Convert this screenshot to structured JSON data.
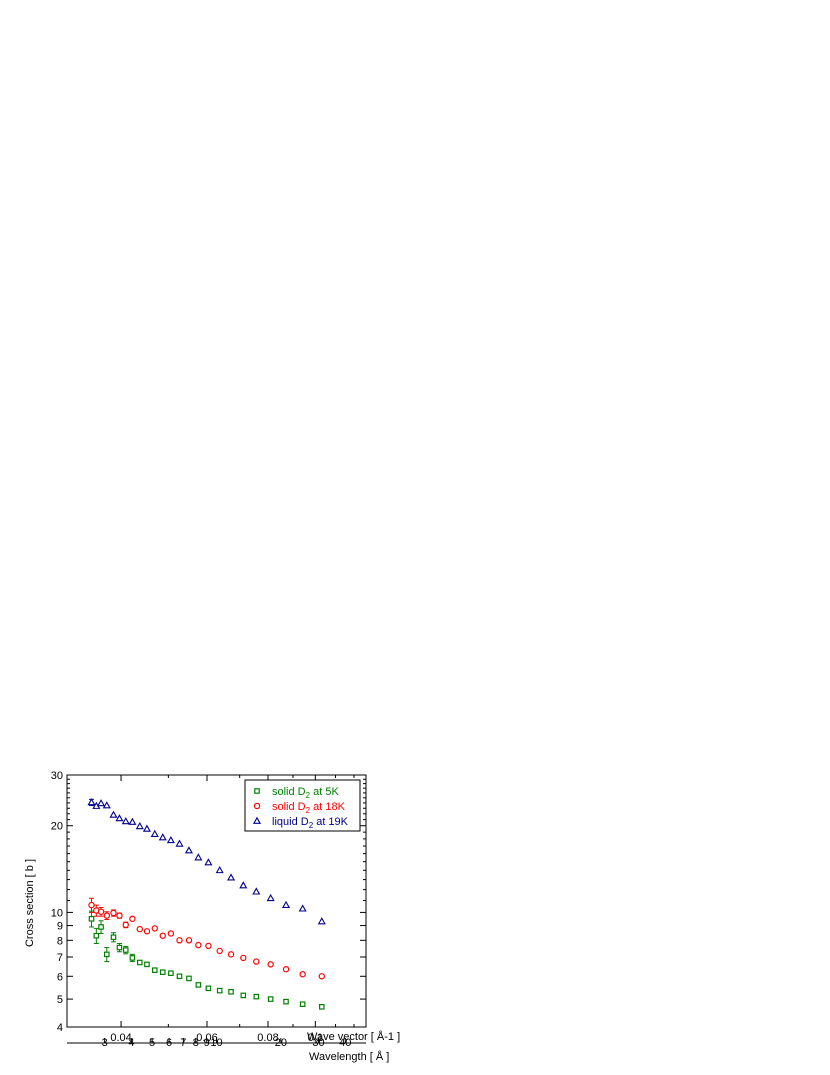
{
  "chart_data": {
    "type": "scatter",
    "xscale": "log",
    "yscale": "log",
    "xlabel": "Wave vector [ Å-1 ]",
    "x2label": "Wavelength [ Å ]",
    "ylabel": "Cross section [ b ]",
    "xlim": [
      0.031,
      0.127
    ],
    "ylim": [
      4,
      30
    ],
    "x_ticks": [
      0.04,
      0.06,
      0.08,
      0.1
    ],
    "x_tick_labels": [
      "0.04",
      "0.06",
      "0.08",
      "0.1"
    ],
    "x2_ticks": [
      3,
      4,
      5,
      6,
      7,
      8,
      9,
      10,
      20,
      30,
      40
    ],
    "x2_tick_labels": [
      "3",
      "4",
      "5",
      "6",
      "7",
      "8",
      "9",
      "10",
      "20",
      "30",
      "40"
    ],
    "y_ticks": [
      4,
      5,
      6,
      7,
      8,
      9,
      10,
      20,
      30
    ],
    "y_tick_labels": [
      "4",
      "5",
      "6",
      "7",
      "8",
      "9",
      "10",
      "20",
      "30"
    ],
    "legend_position": "top-right",
    "grid": false,
    "series": [
      {
        "label_main": "solid D",
        "label_sub": "2",
        "label_rest": " at 5K",
        "marker": "square",
        "color": "#008000",
        "points": [
          {
            "x": 0.0348,
            "y": 9.5,
            "err": 0.6
          },
          {
            "x": 0.0356,
            "y": 8.3,
            "err": 0.5
          },
          {
            "x": 0.0364,
            "y": 8.9,
            "err": 0.45
          },
          {
            "x": 0.0374,
            "y": 7.15,
            "err": 0.4
          },
          {
            "x": 0.0386,
            "y": 8.2,
            "err": 0.3
          },
          {
            "x": 0.0397,
            "y": 7.55,
            "err": 0.25
          },
          {
            "x": 0.0409,
            "y": 7.4,
            "err": 0.22
          },
          {
            "x": 0.0422,
            "y": 6.95,
            "err": 0.2
          },
          {
            "x": 0.0437,
            "y": 6.7,
            "err": 0.12
          },
          {
            "x": 0.0452,
            "y": 6.6,
            "err": 0.1
          },
          {
            "x": 0.0469,
            "y": 6.3,
            "err": 0.08
          },
          {
            "x": 0.0487,
            "y": 6.2,
            "err": 0.07
          },
          {
            "x": 0.0506,
            "y": 6.15,
            "err": 0.06
          },
          {
            "x": 0.0527,
            "y": 6.0,
            "err": 0.06
          },
          {
            "x": 0.0551,
            "y": 5.9,
            "err": 0.05
          },
          {
            "x": 0.0576,
            "y": 5.6,
            "err": 0.05
          },
          {
            "x": 0.0604,
            "y": 5.45,
            "err": 0.05
          },
          {
            "x": 0.0637,
            "y": 5.35,
            "err": 0.05
          },
          {
            "x": 0.0672,
            "y": 5.3,
            "err": 0.04
          },
          {
            "x": 0.0712,
            "y": 5.15,
            "err": 0.04
          },
          {
            "x": 0.0757,
            "y": 5.1,
            "err": 0.04
          },
          {
            "x": 0.081,
            "y": 5.0,
            "err": 0.04
          },
          {
            "x": 0.0871,
            "y": 4.9,
            "err": 0.04
          },
          {
            "x": 0.0942,
            "y": 4.8,
            "err": 0.04
          },
          {
            "x": 0.1031,
            "y": 4.7,
            "err": 0.04
          }
        ]
      },
      {
        "label_main": "solid D",
        "label_sub": "2",
        "label_rest": " at 18K",
        "marker": "circle",
        "color": "#ff0000",
        "points": [
          {
            "x": 0.0348,
            "y": 10.6,
            "err": 0.6
          },
          {
            "x": 0.0356,
            "y": 10.15,
            "err": 0.45
          },
          {
            "x": 0.0364,
            "y": 10.05,
            "err": 0.35
          },
          {
            "x": 0.0374,
            "y": 9.75,
            "err": 0.3
          },
          {
            "x": 0.0386,
            "y": 9.95,
            "err": 0.25
          },
          {
            "x": 0.0397,
            "y": 9.75,
            "err": 0.2
          },
          {
            "x": 0.0409,
            "y": 9.05,
            "err": 0.2
          },
          {
            "x": 0.0422,
            "y": 9.5,
            "err": 0.18
          },
          {
            "x": 0.0437,
            "y": 8.75,
            "err": 0.12
          },
          {
            "x": 0.0452,
            "y": 8.6,
            "err": 0.1
          },
          {
            "x": 0.0469,
            "y": 8.8,
            "err": 0.08
          },
          {
            "x": 0.0487,
            "y": 8.3,
            "err": 0.07
          },
          {
            "x": 0.0506,
            "y": 8.45,
            "err": 0.06
          },
          {
            "x": 0.0527,
            "y": 8.0,
            "err": 0.06
          },
          {
            "x": 0.0551,
            "y": 8.0,
            "err": 0.05
          },
          {
            "x": 0.0576,
            "y": 7.7,
            "err": 0.05
          },
          {
            "x": 0.0604,
            "y": 7.65,
            "err": 0.05
          },
          {
            "x": 0.0637,
            "y": 7.35,
            "err": 0.05
          },
          {
            "x": 0.0672,
            "y": 7.15,
            "err": 0.04
          },
          {
            "x": 0.0712,
            "y": 6.95,
            "err": 0.04
          },
          {
            "x": 0.0757,
            "y": 6.75,
            "err": 0.04
          },
          {
            "x": 0.081,
            "y": 6.6,
            "err": 0.04
          },
          {
            "x": 0.0871,
            "y": 6.35,
            "err": 0.04
          },
          {
            "x": 0.0942,
            "y": 6.1,
            "err": 0.04
          },
          {
            "x": 0.1031,
            "y": 6.0,
            "err": 0.04
          }
        ]
      },
      {
        "label_main": "liquid D",
        "label_sub": "2",
        "label_rest": " at 19K",
        "marker": "triangle",
        "color": "#00008b",
        "points": [
          {
            "x": 0.0348,
            "y": 24.1,
            "err": 0.6
          },
          {
            "x": 0.0356,
            "y": 23.4,
            "err": 0.4
          },
          {
            "x": 0.0364,
            "y": 23.9,
            "err": 0.3
          },
          {
            "x": 0.0374,
            "y": 23.5,
            "err": 0.3
          },
          {
            "x": 0.0386,
            "y": 21.8,
            "err": 0.25
          },
          {
            "x": 0.0397,
            "y": 21.2,
            "err": 0.2
          },
          {
            "x": 0.0409,
            "y": 20.7,
            "err": 0.2
          },
          {
            "x": 0.0422,
            "y": 20.6,
            "err": 0.18
          },
          {
            "x": 0.0437,
            "y": 19.9,
            "err": 0.15
          },
          {
            "x": 0.0452,
            "y": 19.5,
            "err": 0.12
          },
          {
            "x": 0.0469,
            "y": 18.7,
            "err": 0.1
          },
          {
            "x": 0.0487,
            "y": 18.2,
            "err": 0.1
          },
          {
            "x": 0.0506,
            "y": 17.8,
            "err": 0.1
          },
          {
            "x": 0.0527,
            "y": 17.3,
            "err": 0.1
          },
          {
            "x": 0.0551,
            "y": 16.4,
            "err": 0.1
          },
          {
            "x": 0.0576,
            "y": 15.5,
            "err": 0.1
          },
          {
            "x": 0.0604,
            "y": 14.9,
            "err": 0.1
          },
          {
            "x": 0.0637,
            "y": 14.0,
            "err": 0.1
          },
          {
            "x": 0.0672,
            "y": 13.2,
            "err": 0.1
          },
          {
            "x": 0.0712,
            "y": 12.4,
            "err": 0.1
          },
          {
            "x": 0.0757,
            "y": 11.8,
            "err": 0.1
          },
          {
            "x": 0.081,
            "y": 11.2,
            "err": 0.1
          },
          {
            "x": 0.0871,
            "y": 10.6,
            "err": 0.1
          },
          {
            "x": 0.0942,
            "y": 10.3,
            "err": 0.1
          },
          {
            "x": 0.1031,
            "y": 9.3,
            "err": 0.1
          }
        ]
      }
    ]
  }
}
